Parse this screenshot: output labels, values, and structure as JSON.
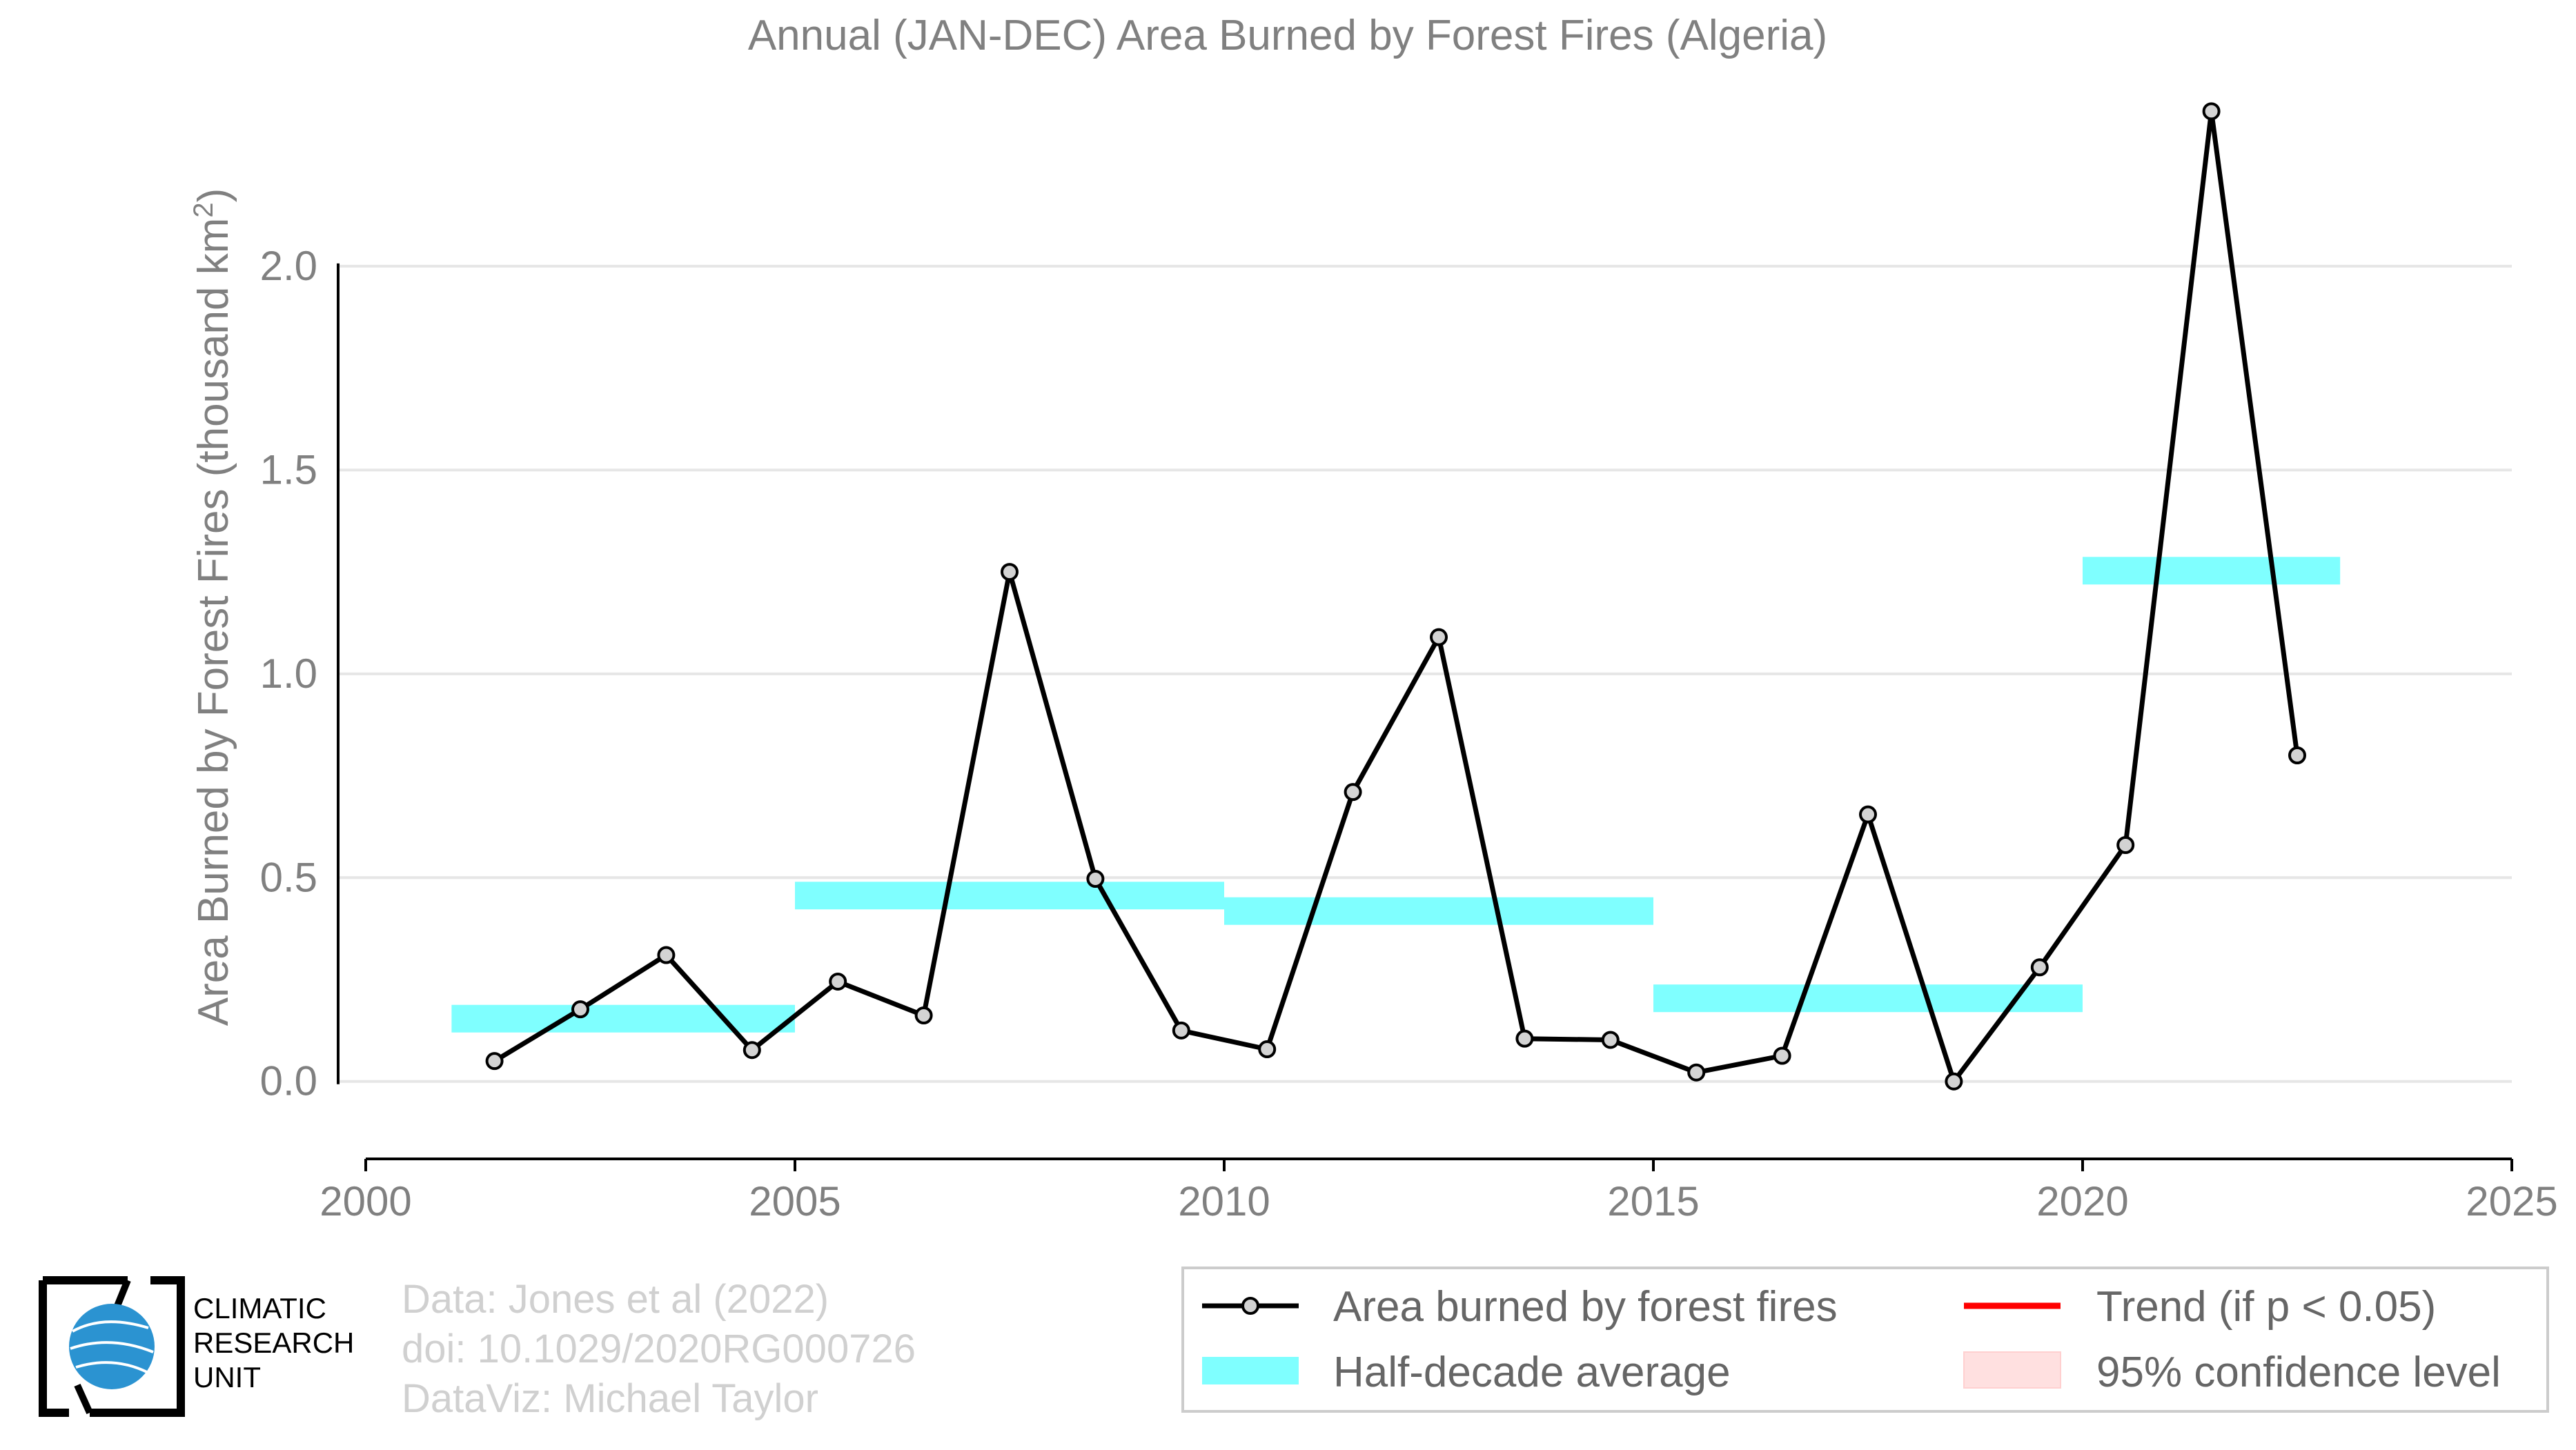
{
  "chart_data": {
    "type": "line",
    "title": "Annual (JAN-DEC) Area Burned by Forest Fires (Algeria)",
    "xlabel": "",
    "ylabel": "Area Burned by Forest Fires (thousand km",
    "ylabel_sup": "2",
    "ylabel_close": ")",
    "xlim": [
      2000,
      2025
    ],
    "ylim": [
      -0.19,
      2.45
    ],
    "x_ticks": [
      2000,
      2005,
      2010,
      2015,
      2020,
      2025
    ],
    "y_ticks": [
      0.0,
      0.5,
      1.0,
      1.5,
      2.0
    ],
    "y_tick_labels": [
      "0.0",
      "0.5",
      "1.0",
      "1.5",
      "2.0"
    ],
    "grid": true,
    "series": [
      {
        "name": "Area burned by forest fires",
        "color": "#000000",
        "marker_fill": "#d3d3d3",
        "x": [
          2001.5,
          2002.5,
          2003.5,
          2004.5,
          2005.5,
          2006.5,
          2007.5,
          2008.5,
          2009.5,
          2010.5,
          2011.5,
          2012.5,
          2013.5,
          2014.5,
          2015.5,
          2016.5,
          2017.5,
          2018.5,
          2019.5,
          2020.5,
          2021.5,
          2022.5
        ],
        "y": [
          0.05,
          0.177,
          0.31,
          0.077,
          0.245,
          0.162,
          1.25,
          0.497,
          0.125,
          0.079,
          0.71,
          1.09,
          0.105,
          0.102,
          0.022,
          0.063,
          0.655,
          0.0,
          0.28,
          0.58,
          2.38,
          0.8
        ]
      }
    ],
    "half_decade_averages": [
      {
        "x_start": 2001,
        "x_end": 2005,
        "value": 0.154
      },
      {
        "x_start": 2005,
        "x_end": 2010,
        "value": 0.456
      },
      {
        "x_start": 2010,
        "x_end": 2015,
        "value": 0.418
      },
      {
        "x_start": 2015,
        "x_end": 2020,
        "value": 0.204
      },
      {
        "x_start": 2020,
        "x_end": 2023,
        "value": 1.253
      }
    ],
    "legend": {
      "placement": "bottom-right",
      "items": [
        {
          "label": "Area burned by forest fires",
          "kind": "line-marker",
          "color": "#000000"
        },
        {
          "label": "Trend (if p < 0.05)",
          "kind": "line",
          "color": "#ff0000"
        },
        {
          "label": "Half-decade average",
          "kind": "band",
          "color": "#7fffff"
        },
        {
          "label": "95% confidence level",
          "kind": "fill",
          "color": "#ffe0e0"
        }
      ]
    },
    "colors": {
      "axis_text": "#808080",
      "grid": "#e6e6e6",
      "band": "#7fffff"
    }
  },
  "credits": {
    "line1": "Data: Jones et al (2022)",
    "line2": "doi: 10.1029/2020RG000726",
    "line3": "DataViz: Michael Taylor"
  },
  "logo": {
    "line1": "CLIMATIC",
    "line2": "RESEARCH",
    "line3": "UNIT"
  }
}
